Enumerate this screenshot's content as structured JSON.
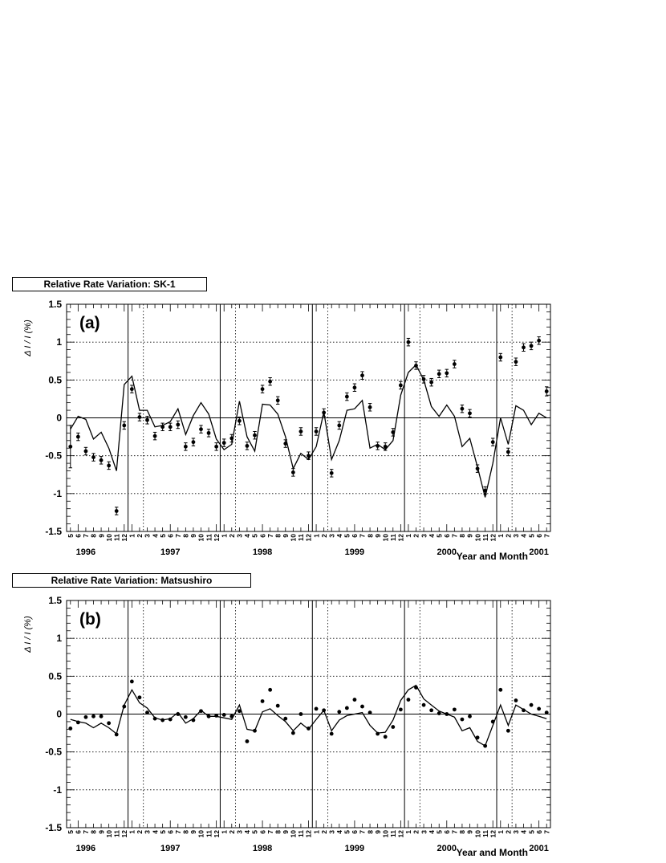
{
  "chart_data": [
    {
      "type": "scatter",
      "title": "Relative Rate Variation: SK-1",
      "panel_label": "(a)",
      "ylabel": "Δ I / I (%)",
      "xlabel": "Year and Month",
      "ylim": [
        -1.5,
        1.5
      ],
      "yticks": [
        "1.5",
        "1",
        "0.5",
        "0",
        "-0.5",
        "-1",
        "-1.5"
      ],
      "x_month_labels": [
        "5",
        "6",
        "7",
        "8",
        "9",
        "10",
        "11",
        "12",
        "1",
        "2",
        "3",
        "4",
        "5",
        "6",
        "7",
        "8",
        "9",
        "10",
        "11",
        "12",
        "1",
        "2",
        "3",
        "4",
        "5",
        "6",
        "7",
        "8",
        "9",
        "10",
        "11",
        "12",
        "1",
        "2",
        "3",
        "4",
        "5",
        "6",
        "7",
        "8",
        "9",
        "10",
        "11",
        "12",
        "1",
        "2",
        "3",
        "4",
        "5",
        "6",
        "7",
        "8",
        "9",
        "10",
        "11",
        "12",
        "1",
        "2",
        "3",
        "4",
        "5",
        "6",
        "7"
      ],
      "years": [
        "1996",
        "1997",
        "1998",
        "1999",
        "2000",
        "2001"
      ],
      "grid": true,
      "series": [
        {
          "values": [
            -0.38,
            -0.25,
            -0.44,
            -0.52,
            -0.56,
            -0.63,
            -1.23,
            -0.1,
            0.38,
            0.01,
            -0.03,
            -0.24,
            -0.12,
            -0.12,
            -0.09,
            -0.38,
            -0.32,
            -0.15,
            -0.2,
            -0.38,
            -0.33,
            -0.27,
            -0.04,
            -0.37,
            -0.23,
            0.38,
            0.48,
            0.23,
            -0.34,
            -0.72,
            -0.18,
            -0.5,
            -0.18,
            0.07,
            -0.73,
            -0.1,
            0.28,
            0.4,
            0.56,
            0.14,
            -0.37,
            -0.38,
            -0.19,
            0.43,
            1.0,
            0.69,
            0.51,
            0.47,
            0.58,
            0.59,
            0.71,
            0.12,
            0.06,
            -0.67,
            -0.96,
            -0.32,
            0.8,
            -0.45,
            0.74,
            0.93,
            0.95,
            1.02,
            0.35
          ],
          "errors": [
            0.28,
            0.05,
            0.05,
            0.05,
            0.05,
            0.05,
            0.05,
            0.05,
            0.05,
            0.05,
            0.05,
            0.05,
            0.05,
            0.05,
            0.05,
            0.05,
            0.05,
            0.05,
            0.05,
            0.05,
            0.05,
            0.05,
            0.05,
            0.05,
            0.05,
            0.05,
            0.05,
            0.05,
            0.05,
            0.05,
            0.05,
            0.05,
            0.05,
            0.05,
            0.05,
            0.05,
            0.05,
            0.05,
            0.05,
            0.05,
            0.05,
            0.05,
            0.05,
            0.05,
            0.05,
            0.05,
            0.05,
            0.05,
            0.05,
            0.05,
            0.05,
            0.05,
            0.05,
            0.05,
            0.05,
            0.05,
            0.05,
            0.05,
            0.05,
            0.05,
            0.05,
            0.05,
            0.06
          ]
        },
        {
          "type": "line",
          "values": [
            -0.15,
            0.02,
            -0.02,
            -0.28,
            -0.19,
            -0.4,
            -0.7,
            0.44,
            0.55,
            0.1,
            0.1,
            -0.12,
            -0.1,
            -0.05,
            0.12,
            -0.22,
            0.03,
            0.2,
            0.05,
            -0.28,
            -0.42,
            -0.35,
            0.22,
            -0.25,
            -0.44,
            0.18,
            0.17,
            0.05,
            -0.25,
            -0.67,
            -0.47,
            -0.55,
            -0.38,
            0.08,
            -0.55,
            -0.3,
            0.1,
            0.12,
            0.23,
            -0.4,
            -0.35,
            -0.42,
            -0.3,
            0.3,
            0.6,
            0.7,
            0.5,
            0.15,
            0.02,
            0.17,
            0.02,
            -0.38,
            -0.27,
            -0.65,
            -1.05,
            -0.6,
            0.0,
            -0.35,
            0.16,
            0.1,
            -0.09,
            0.06,
            0.0
          ]
        }
      ]
    },
    {
      "type": "scatter",
      "title": "Relative Rate Variation: Matsushiro",
      "panel_label": "(b)",
      "ylabel": "Δ I / I (%)",
      "xlabel": "Year and Month",
      "ylim": [
        -1.5,
        1.5
      ],
      "yticks": [
        "1.5",
        "1",
        "0.5",
        "0",
        "-0.5",
        "-1",
        "-1.5"
      ],
      "x_month_labels": [
        "5",
        "6",
        "7",
        "8",
        "9",
        "10",
        "11",
        "12",
        "1",
        "2",
        "3",
        "4",
        "5",
        "6",
        "7",
        "8",
        "9",
        "10",
        "11",
        "12",
        "1",
        "2",
        "3",
        "4",
        "5",
        "6",
        "7",
        "8",
        "9",
        "10",
        "11",
        "12",
        "1",
        "2",
        "3",
        "4",
        "5",
        "6",
        "7",
        "8",
        "9",
        "10",
        "11",
        "12",
        "1",
        "2",
        "3",
        "4",
        "5",
        "6",
        "7",
        "8",
        "9",
        "10",
        "11",
        "12",
        "1",
        "2",
        "3",
        "4",
        "5",
        "6",
        "7"
      ],
      "years": [
        "1996",
        "1997",
        "1998",
        "1999",
        "2000",
        "2001"
      ],
      "grid": true,
      "series": [
        {
          "values": [
            -0.19,
            -0.11,
            -0.04,
            -0.03,
            -0.03,
            -0.12,
            -0.27,
            0.1,
            0.43,
            0.22,
            0.02,
            -0.06,
            -0.08,
            -0.07,
            0.0,
            -0.04,
            -0.08,
            0.04,
            -0.03,
            -0.02,
            -0.01,
            -0.03,
            0.04,
            -0.36,
            -0.22,
            0.17,
            0.32,
            0.11,
            -0.06,
            -0.25,
            0.0,
            -0.19,
            0.07,
            0.05,
            -0.26,
            0.03,
            0.08,
            0.19,
            0.1,
            0.02,
            -0.26,
            -0.3,
            -0.17,
            0.06,
            0.19,
            0.35,
            0.12,
            0.05,
            0.01,
            0.0,
            0.06,
            -0.07,
            -0.03,
            -0.31,
            -0.42,
            -0.1,
            0.32,
            -0.22,
            0.18,
            0.05,
            0.12,
            0.07,
            0.02
          ]
        },
        {
          "type": "line",
          "values": [
            -0.07,
            -0.1,
            -0.12,
            -0.18,
            -0.12,
            -0.18,
            -0.26,
            0.12,
            0.32,
            0.15,
            0.08,
            -0.05,
            -0.08,
            -0.06,
            0.02,
            -0.12,
            -0.06,
            0.05,
            -0.03,
            -0.03,
            -0.05,
            -0.07,
            0.12,
            -0.2,
            -0.22,
            0.03,
            0.07,
            -0.02,
            -0.1,
            -0.22,
            -0.12,
            -0.2,
            -0.07,
            0.05,
            -0.22,
            -0.08,
            -0.02,
            0.0,
            0.02,
            -0.15,
            -0.25,
            -0.24,
            -0.08,
            0.18,
            0.32,
            0.38,
            0.2,
            0.12,
            0.04,
            0.0,
            -0.04,
            -0.22,
            -0.18,
            -0.36,
            -0.42,
            -0.15,
            0.12,
            -0.15,
            0.12,
            0.06,
            0.0,
            -0.03,
            -0.06
          ]
        }
      ]
    }
  ]
}
